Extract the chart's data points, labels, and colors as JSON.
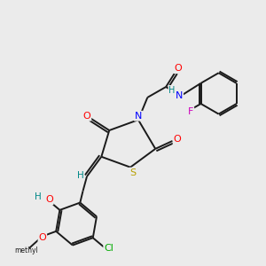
{
  "bg_color": "#ebebeb",
  "bond_color": "#1a1a1a",
  "atom_colors": {
    "O": "#ff0000",
    "N": "#0000ff",
    "S": "#b8a000",
    "Cl": "#00aa00",
    "F": "#cc00bb",
    "H": "#008888",
    "C": "#1a1a1a"
  }
}
